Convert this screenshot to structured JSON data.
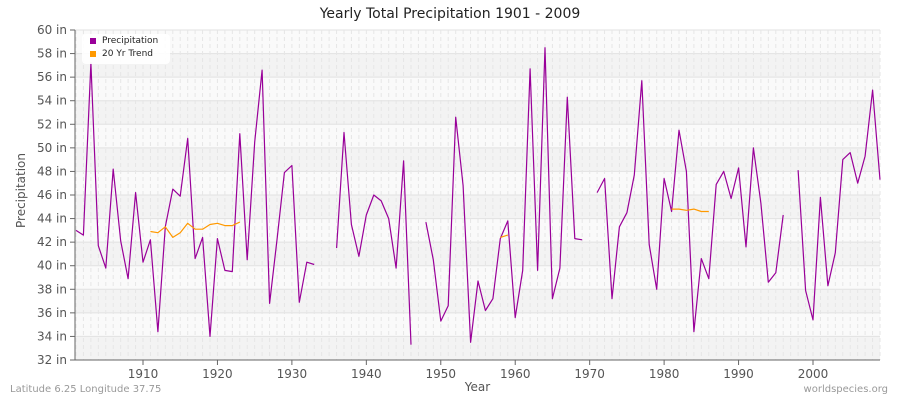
{
  "header": {
    "title": "Yearly Total Precipitation 1901 - 2009"
  },
  "footer": {
    "location": "Latitude 6.25 Longitude 37.75",
    "source": "worldspecies.org"
  },
  "legend": {
    "items": [
      {
        "label": "Precipitation",
        "color": "#990099"
      },
      {
        "label": "20 Yr Trend",
        "color": "#ff9900"
      }
    ]
  },
  "chart_data": {
    "type": "line",
    "title": "Yearly Total Precipitation 1901 - 2009",
    "xlabel": "Year",
    "ylabel": "Precipitation",
    "xlim": [
      1901,
      2009
    ],
    "ylim": [
      32,
      60
    ],
    "y_ticks": [
      "32 in",
      "34 in",
      "36 in",
      "38 in",
      "40 in",
      "42 in",
      "44 in",
      "46 in",
      "48 in",
      "50 in",
      "52 in",
      "54 in",
      "56 in",
      "58 in",
      "60 in"
    ],
    "x_ticks": [
      "1910",
      "1920",
      "1930",
      "1940",
      "1950",
      "1960",
      "1970",
      "1980",
      "1990",
      "2000"
    ],
    "grid": true,
    "legend_position": "top-left",
    "series": [
      {
        "name": "Precipitation",
        "color": "#990099",
        "unit": "in",
        "points": [
          [
            1901,
            43.0
          ],
          [
            1902,
            42.6
          ],
          [
            1903,
            57.2
          ],
          [
            1904,
            41.7
          ],
          [
            1905,
            39.8
          ],
          [
            1906,
            48.2
          ],
          [
            1907,
            42.1
          ],
          [
            1908,
            38.9
          ],
          [
            1909,
            46.2
          ],
          [
            1910,
            40.3
          ],
          [
            1911,
            42.2
          ],
          [
            1912,
            34.4
          ],
          [
            1913,
            43.3
          ],
          [
            1914,
            46.5
          ],
          [
            1915,
            45.9
          ],
          [
            1916,
            50.8
          ],
          [
            1917,
            40.6
          ],
          [
            1918,
            42.4
          ],
          [
            1919,
            34.0
          ],
          [
            1920,
            42.3
          ],
          [
            1921,
            39.6
          ],
          [
            1922,
            39.5
          ],
          [
            1923,
            51.2
          ],
          [
            1924,
            40.5
          ],
          [
            1925,
            50.5
          ],
          [
            1926,
            56.6
          ],
          [
            1927,
            36.8
          ],
          [
            1928,
            42.2
          ],
          [
            1929,
            47.9
          ],
          [
            1930,
            48.5
          ],
          [
            1931,
            36.9
          ],
          [
            1932,
            40.3
          ],
          [
            1933,
            40.1
          ],
          [
            1934,
            null
          ],
          [
            1935,
            null
          ],
          [
            1936,
            41.5
          ],
          [
            1937,
            51.3
          ],
          [
            1938,
            43.5
          ],
          [
            1939,
            40.8
          ],
          [
            1940,
            44.3
          ],
          [
            1941,
            46.0
          ],
          [
            1942,
            45.5
          ],
          [
            1943,
            44.0
          ],
          [
            1944,
            39.8
          ],
          [
            1945,
            48.9
          ],
          [
            1946,
            33.3
          ],
          [
            1947,
            null
          ],
          [
            1948,
            43.7
          ],
          [
            1949,
            40.5
          ],
          [
            1950,
            35.3
          ],
          [
            1951,
            36.6
          ],
          [
            1952,
            52.6
          ],
          [
            1953,
            46.8
          ],
          [
            1954,
            33.5
          ],
          [
            1955,
            38.7
          ],
          [
            1956,
            36.2
          ],
          [
            1957,
            37.2
          ],
          [
            1958,
            42.3
          ],
          [
            1959,
            43.8
          ],
          [
            1960,
            35.6
          ],
          [
            1961,
            39.6
          ],
          [
            1962,
            56.7
          ],
          [
            1963,
            39.6
          ],
          [
            1964,
            58.5
          ],
          [
            1965,
            37.2
          ],
          [
            1966,
            39.8
          ],
          [
            1967,
            54.3
          ],
          [
            1968,
            42.3
          ],
          [
            1969,
            42.2
          ],
          [
            1970,
            null
          ],
          [
            1971,
            46.2
          ],
          [
            1972,
            47.4
          ],
          [
            1973,
            37.2
          ],
          [
            1974,
            43.3
          ],
          [
            1975,
            44.5
          ],
          [
            1976,
            47.7
          ],
          [
            1977,
            55.7
          ],
          [
            1978,
            41.8
          ],
          [
            1979,
            38.0
          ],
          [
            1980,
            47.4
          ],
          [
            1981,
            44.6
          ],
          [
            1982,
            51.5
          ],
          [
            1983,
            48.0
          ],
          [
            1984,
            34.4
          ],
          [
            1985,
            40.6
          ],
          [
            1986,
            38.9
          ],
          [
            1987,
            46.9
          ],
          [
            1988,
            48.0
          ],
          [
            1989,
            45.7
          ],
          [
            1990,
            48.3
          ],
          [
            1991,
            41.6
          ],
          [
            1992,
            50.0
          ],
          [
            1993,
            45.3
          ],
          [
            1994,
            38.6
          ],
          [
            1995,
            39.4
          ],
          [
            1996,
            44.3
          ],
          [
            1997,
            null
          ],
          [
            1998,
            48.1
          ],
          [
            1999,
            37.9
          ],
          [
            2000,
            35.4
          ],
          [
            2001,
            45.8
          ],
          [
            2002,
            38.3
          ],
          [
            2003,
            41.1
          ],
          [
            2004,
            49.0
          ],
          [
            2005,
            49.6
          ],
          [
            2006,
            47.0
          ],
          [
            2007,
            49.3
          ],
          [
            2008,
            54.9
          ],
          [
            2009,
            47.3
          ]
        ]
      },
      {
        "name": "20 Yr Trend",
        "color": "#ff9900",
        "unit": "in",
        "points": [
          [
            1911,
            42.9
          ],
          [
            1912,
            42.8
          ],
          [
            1913,
            43.3
          ],
          [
            1914,
            42.4
          ],
          [
            1915,
            42.8
          ],
          [
            1916,
            43.6
          ],
          [
            1917,
            43.1
          ],
          [
            1918,
            43.1
          ],
          [
            1919,
            43.5
          ],
          [
            1920,
            43.6
          ],
          [
            1921,
            43.4
          ],
          [
            1922,
            43.4
          ],
          [
            1923,
            43.7
          ],
          [
            1924,
            null
          ],
          [
            1958,
            42.4
          ],
          [
            1959,
            42.6
          ],
          [
            1960,
            null
          ],
          [
            1981,
            44.8
          ],
          [
            1982,
            44.8
          ],
          [
            1983,
            44.7
          ],
          [
            1984,
            44.8
          ],
          [
            1985,
            44.6
          ],
          [
            1986,
            44.6
          ]
        ]
      }
    ]
  }
}
